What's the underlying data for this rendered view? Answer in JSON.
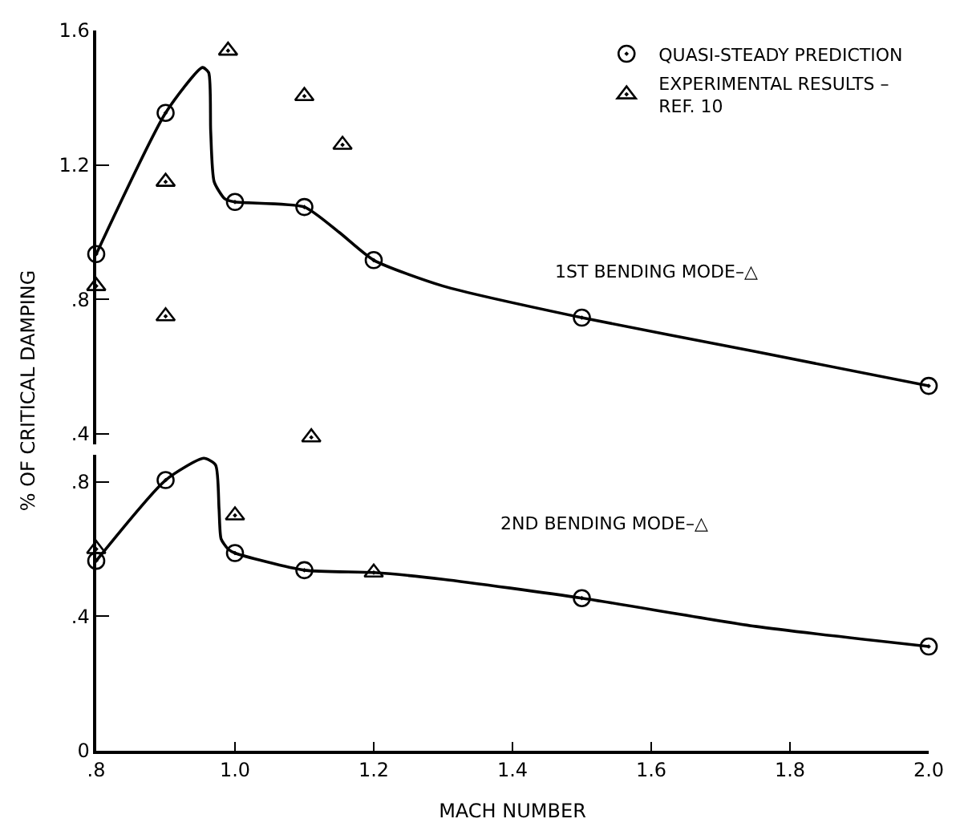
{
  "chart_data": [
    {
      "type": "line",
      "ylabel": "% OF CRITICAL DAMPING",
      "xlim": [
        0.8,
        2.0
      ],
      "ylim": [
        0.37,
        1.6
      ],
      "yticks": [
        {
          "value": 0.4,
          "label": ".4"
        },
        {
          "value": 0.8,
          "label": ".8"
        },
        {
          "value": 1.2,
          "label": "1.2"
        },
        {
          "value": 1.6,
          "label": "1.6"
        }
      ],
      "tick_labels": "y",
      "legend": "top right",
      "series": [
        {
          "color": "#000000",
          "marker": "none",
          "line_style": "solid",
          "x": [
            0.8,
            0.9,
            0.953,
            0.962,
            0.965,
            0.97,
            0.985,
            1.0,
            1.1,
            1.15,
            1.2,
            1.3,
            1.5,
            1.75,
            2.0
          ],
          "values": [
            0.935,
            1.355,
            1.49,
            1.475,
            1.3,
            1.15,
            1.1,
            1.09,
            1.075,
            1.0,
            0.917,
            0.84,
            0.746,
            0.645,
            0.543
          ]
        },
        {
          "type": "scatter",
          "name": "QUASI-STEADY PREDICTION",
          "color": "#000000",
          "marker": "circle",
          "x": [
            0.8,
            0.9,
            1.0,
            1.1,
            1.2,
            1.5,
            2.0
          ],
          "values": [
            0.935,
            1.355,
            1.09,
            1.075,
            0.917,
            0.746,
            0.543
          ]
        },
        {
          "type": "scatter",
          "name": "EXPERIMENTAL RESULTS –\nREF. 10",
          "color": "#000000",
          "marker": "triangle",
          "x": [
            0.8,
            0.9,
            0.99,
            1.1,
            1.155
          ],
          "values": [
            0.84,
            1.15,
            1.54,
            1.405,
            1.26
          ]
        },
        {
          "type": "scatter",
          "color": "#000000",
          "marker": "triangle",
          "x": [
            0.9,
            1.11
          ],
          "values": [
            0.75,
            0.39
          ]
        }
      ],
      "annotations": [
        "1ST BENDING MODE–△"
      ]
    },
    {
      "type": "line",
      "xlabel": "MACH NUMBER",
      "xlim": [
        0.8,
        2.0
      ],
      "xticks": [
        {
          "value": 0.8,
          "label": ".8"
        },
        {
          "value": 1.0,
          "label": "1.0"
        },
        {
          "value": 1.2,
          "label": "1.2"
        },
        {
          "value": 1.4,
          "label": "1.4"
        },
        {
          "value": 1.6,
          "label": "1.6"
        },
        {
          "value": 1.8,
          "label": "1.8"
        },
        {
          "value": 2.0,
          "label": "2.0"
        }
      ],
      "ylim": [
        0,
        0.88
      ],
      "yticks": [
        0,
        {
          "value": 0.4,
          "label": ".4"
        },
        {
          "value": 0.8,
          "label": ".8"
        }
      ],
      "legend": false,
      "series": [
        {
          "color": "#000000",
          "marker": "none",
          "line_style": "solid",
          "x": [
            0.8,
            0.9,
            0.955,
            0.972,
            0.977,
            0.98,
            0.99,
            1.0,
            1.1,
            1.2,
            1.3,
            1.5,
            1.75,
            2.0
          ],
          "values": [
            0.565,
            0.805,
            0.87,
            0.85,
            0.72,
            0.63,
            0.6,
            0.588,
            0.537,
            0.53,
            0.51,
            0.454,
            0.37,
            0.31
          ]
        },
        {
          "type": "scatter",
          "color": "#000000",
          "marker": "circle",
          "x": [
            0.8,
            0.9,
            1.0,
            1.1,
            1.5,
            2.0
          ],
          "values": [
            0.565,
            0.805,
            0.588,
            0.537,
            0.454,
            0.31
          ]
        },
        {
          "type": "scatter",
          "color": "#000000",
          "marker": "triangle",
          "x": [
            0.8,
            1.0,
            1.2
          ],
          "values": [
            0.6,
            0.7,
            0.53
          ]
        }
      ],
      "annotations": [
        "2ND BENDING MODE–△"
      ]
    }
  ]
}
